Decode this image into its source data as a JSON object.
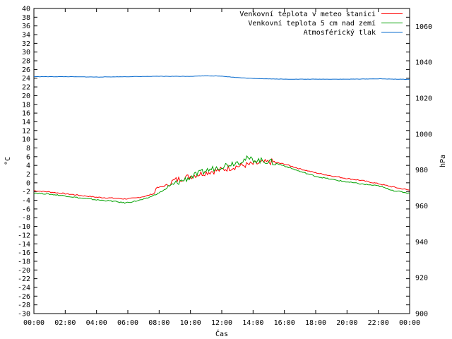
{
  "chart_data": {
    "type": "line",
    "xlabel": "Čas",
    "ylabel_left": "°C",
    "ylabel_right": "hPa",
    "y_left_range": [
      -30,
      40
    ],
    "y_left_ticks": [
      "-30",
      "-28",
      "-26",
      "-24",
      "-22",
      "-20",
      "-18",
      "-16",
      "-14",
      "-12",
      "-10",
      "-8",
      "-6",
      "-4",
      "-2",
      "0",
      "2",
      "4",
      "6",
      "8",
      "10",
      "12",
      "14",
      "16",
      "18",
      "20",
      "22",
      "24",
      "26",
      "28",
      "30",
      "32",
      "34",
      "36",
      "38",
      "40"
    ],
    "y_right_range": [
      900,
      1070
    ],
    "y_right_ticks": [
      "900",
      "920",
      "940",
      "960",
      "980",
      "1000",
      "1020",
      "1040",
      "1060"
    ],
    "x_range_hours": [
      0,
      24
    ],
    "x_ticks": [
      "00:00",
      "02:00",
      "04:00",
      "06:00",
      "08:00",
      "10:00",
      "12:00",
      "14:00",
      "16:00",
      "18:00",
      "20:00",
      "22:00",
      "00:00"
    ],
    "grid": false,
    "legend_position": "top-right",
    "series": [
      {
        "name": "Venkovní teplota v meteo stanici",
        "axis": "left",
        "color": "#ff0000",
        "points": [
          [
            0,
            -1.8
          ],
          [
            1,
            -2.1
          ],
          [
            2,
            -2.5
          ],
          [
            3,
            -2.9
          ],
          [
            4,
            -3.3
          ],
          [
            5,
            -3.5
          ],
          [
            5.8,
            -3.7
          ],
          [
            6.5,
            -3.5
          ],
          [
            7.2,
            -3.0
          ],
          [
            7.7,
            -2.4
          ],
          [
            7.8,
            -1.2
          ],
          [
            8.3,
            -0.8
          ],
          [
            9,
            0.6
          ],
          [
            10,
            1.5
          ],
          [
            11,
            2.4
          ],
          [
            12,
            3.0
          ],
          [
            13,
            3.8
          ],
          [
            14,
            4.3
          ],
          [
            14.6,
            4.6
          ],
          [
            15.2,
            4.8
          ],
          [
            16,
            4.3
          ],
          [
            17,
            3.2
          ],
          [
            18,
            2.3
          ],
          [
            19,
            1.6
          ],
          [
            20,
            1.0
          ],
          [
            21,
            0.5
          ],
          [
            22,
            -0.2
          ],
          [
            23,
            -1.0
          ],
          [
            24,
            -1.7
          ]
        ]
      },
      {
        "name": "Venkovní teplota 5 cm nad zemí",
        "axis": "left",
        "color": "#00a000",
        "points": [
          [
            0,
            -2.3
          ],
          [
            1,
            -2.6
          ],
          [
            2,
            -3.0
          ],
          [
            3,
            -3.5
          ],
          [
            4,
            -3.9
          ],
          [
            5,
            -4.2
          ],
          [
            5.8,
            -4.6
          ],
          [
            6.5,
            -4.2
          ],
          [
            7.2,
            -3.6
          ],
          [
            8,
            -2.3
          ],
          [
            9,
            -0.2
          ],
          [
            10,
            1.3
          ],
          [
            11,
            2.8
          ],
          [
            12,
            3.8
          ],
          [
            13,
            4.8
          ],
          [
            13.6,
            5.5
          ],
          [
            14.2,
            5.2
          ],
          [
            15,
            4.9
          ],
          [
            16,
            3.9
          ],
          [
            17,
            2.6
          ],
          [
            18,
            1.5
          ],
          [
            19,
            0.8
          ],
          [
            20,
            0.2
          ],
          [
            21,
            -0.3
          ],
          [
            22,
            -0.7
          ],
          [
            23,
            -1.8
          ],
          [
            24,
            -2.4
          ]
        ]
      },
      {
        "name": "Atmosférický tlak",
        "axis": "right",
        "color": "#0066cc",
        "points": [
          [
            0,
            1032.0
          ],
          [
            2,
            1032.0
          ],
          [
            4,
            1031.8
          ],
          [
            6,
            1032.0
          ],
          [
            8,
            1032.2
          ],
          [
            10,
            1032.2
          ],
          [
            11,
            1032.5
          ],
          [
            12,
            1032.3
          ],
          [
            13,
            1031.5
          ],
          [
            14,
            1031.0
          ],
          [
            15,
            1030.8
          ],
          [
            16,
            1030.6
          ],
          [
            18,
            1030.6
          ],
          [
            20,
            1030.6
          ],
          [
            22,
            1030.8
          ],
          [
            24,
            1030.5
          ]
        ]
      }
    ]
  }
}
